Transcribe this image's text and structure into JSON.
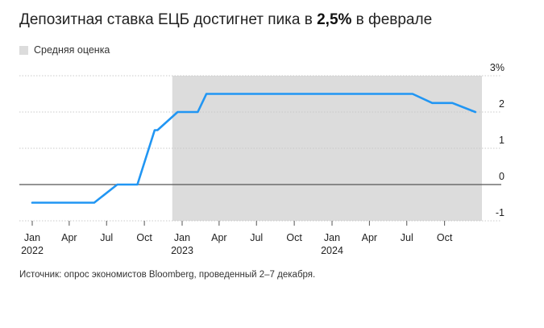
{
  "header": {
    "title_before": "Депозитная ставка ЕЦБ достигнет пика в ",
    "title_bold": "2,5%",
    "title_after": " в феврале"
  },
  "legend": {
    "label": "Средняя оценка",
    "swatch_color": "#dcdcdc"
  },
  "footer": {
    "source": "Источник: опрос экономистов Bloomberg, проведенный 2–7 декабря."
  },
  "chart_data": {
    "type": "line",
    "title": "Депозитная ставка ЕЦБ достигнет пика в 2,5% в феврале",
    "xlabel": "",
    "ylabel": "",
    "ylim": [
      -1,
      3
    ],
    "y_ticks": [
      {
        "value": 3,
        "label": "3%"
      },
      {
        "value": 2,
        "label": "2"
      },
      {
        "value": 1,
        "label": "1"
      },
      {
        "value": 0,
        "label": "0"
      },
      {
        "value": -1,
        "label": "-1"
      }
    ],
    "x_ticks": [
      {
        "date": "2022-01",
        "label": "Jan",
        "year": "2022"
      },
      {
        "date": "2022-04",
        "label": "Apr",
        "year": ""
      },
      {
        "date": "2022-07",
        "label": "Jul",
        "year": ""
      },
      {
        "date": "2022-10",
        "label": "Oct",
        "year": ""
      },
      {
        "date": "2023-01",
        "label": "Jan",
        "year": "2023"
      },
      {
        "date": "2023-04",
        "label": "Apr",
        "year": ""
      },
      {
        "date": "2023-07",
        "label": "Jul",
        "year": ""
      },
      {
        "date": "2023-10",
        "label": "Oct",
        "year": ""
      },
      {
        "date": "2024-01",
        "label": "Jan",
        "year": "2024"
      },
      {
        "date": "2024-04",
        "label": "Apr",
        "year": ""
      },
      {
        "date": "2024-07",
        "label": "Jul",
        "year": ""
      },
      {
        "date": "2024-10",
        "label": "Oct",
        "year": ""
      }
    ],
    "grid": true,
    "legend_position": "top-left",
    "forecast_band": {
      "start": "2022-12-08",
      "end": "2024-12-31",
      "color": "#dcdcdc"
    },
    "line_color": "#2196f3",
    "series": [
      {
        "x": [
          "2022-01-01",
          "2022-06-01",
          "2022-07-27",
          "2022-09-14",
          "2022-10-26",
          "2022-11-02",
          "2022-12-21",
          "2023-02-08",
          "2023-03-01",
          "2024-06-01",
          "2024-07-15",
          "2024-09-01",
          "2024-10-20",
          "2024-12-15"
        ],
        "values": [
          -0.5,
          -0.5,
          0,
          0,
          1.5,
          1.5,
          2,
          2,
          2.5,
          2.5,
          2.5,
          2.25,
          2.25,
          2
        ]
      }
    ]
  }
}
